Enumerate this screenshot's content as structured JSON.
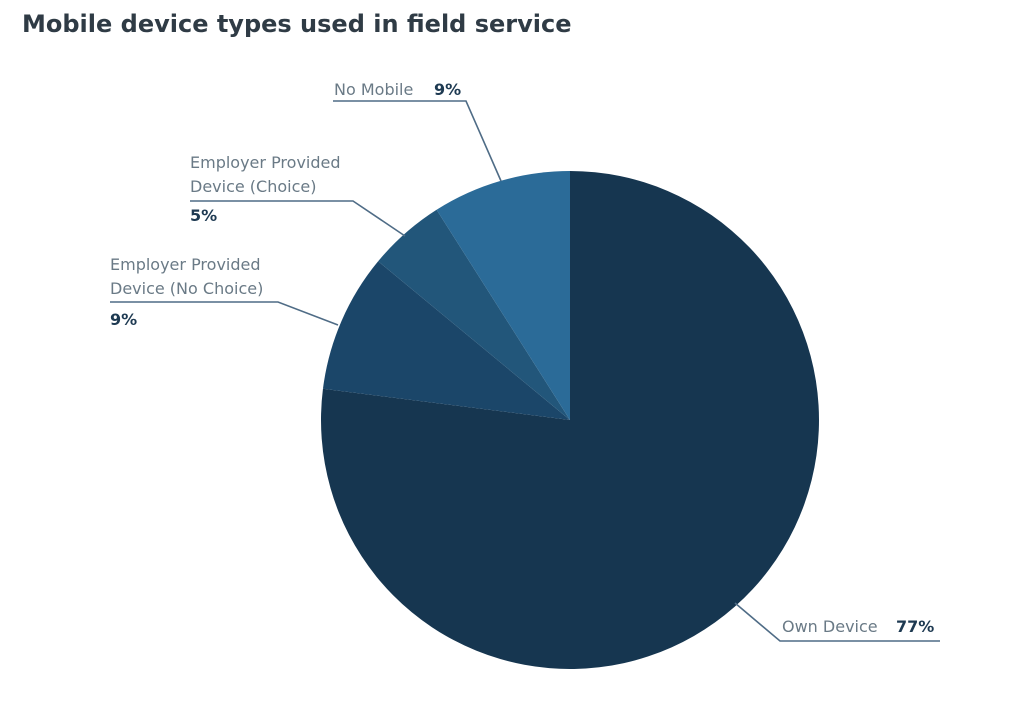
{
  "chart_data": {
    "type": "pie",
    "title": "Mobile device types used in field service",
    "slices": [
      {
        "name": "Own Device",
        "value_label": "77%",
        "value": 77,
        "color": "#163650"
      },
      {
        "name": "Employer Provided Device (No Choice)",
        "name_lines": [
          "Employer Provided",
          "Device (No Choice)"
        ],
        "value_label": "9%",
        "value": 9,
        "color": "#1b4669"
      },
      {
        "name": "Employer Provided Device (Choice)",
        "name_lines": [
          "Employer Provided",
          "Device (Choice)"
        ],
        "value_label": "5%",
        "value": 5,
        "color": "#22567a"
      },
      {
        "name": "No Mobile",
        "value_label": "9%",
        "value": 9,
        "color": "#2b6b98"
      }
    ]
  }
}
